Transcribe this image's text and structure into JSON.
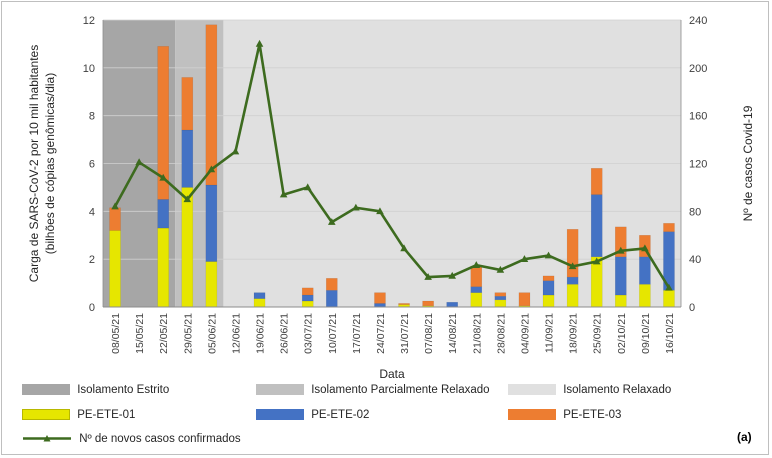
{
  "chart_data": {
    "type": "bar+line",
    "xlabel": "Data",
    "ylabel_left": "Carga de SARS-CoV-2 por 10 mil habitantes (bilhões de cópias genômicas/dia)",
    "ylabel_right": "Nº de casos Covid-19",
    "ylim_left": [
      0,
      12
    ],
    "ylim_right": [
      0,
      240
    ],
    "yticks_left": [
      "0",
      "2",
      "4",
      "6",
      "8",
      "10",
      "12"
    ],
    "yticks_right": [
      "0",
      "40",
      "80",
      "120",
      "160",
      "200",
      "240"
    ],
    "categories": [
      "08/05/21",
      "15/05/21",
      "22/05/21",
      "29/05/21",
      "05/06/21",
      "12/06/21",
      "19/06/21",
      "26/06/21",
      "03/07/21",
      "10/07/21",
      "17/07/21",
      "24/07/21",
      "31/07/21",
      "07/08/21",
      "14/08/21",
      "21/08/21",
      "28/08/21",
      "04/09/21",
      "11/09/21",
      "18/09/21",
      "25/09/21",
      "02/10/21",
      "09/10/21",
      "16/10/21"
    ],
    "series": [
      {
        "name": "PE-ETE-01",
        "type": "bar-stacked",
        "color": "#e6e600",
        "values": [
          3.2,
          0,
          3.3,
          5.0,
          1.9,
          0,
          0.35,
          0,
          0.25,
          0,
          0,
          0,
          0.1,
          0.05,
          0,
          0.6,
          0.3,
          0.05,
          0.5,
          0.95,
          2.1,
          0.5,
          0.95,
          0.7
        ]
      },
      {
        "name": "PE-ETE-02",
        "type": "bar-stacked",
        "color": "#4472c4",
        "values": [
          0,
          0,
          1.2,
          2.4,
          3.2,
          0,
          0.25,
          0,
          0.25,
          0.7,
          0,
          0.15,
          0,
          0,
          0.2,
          0.25,
          0.15,
          0,
          0.6,
          0.3,
          2.6,
          1.6,
          1.15,
          2.45
        ]
      },
      {
        "name": "PE-ETE-03",
        "type": "bar-stacked",
        "color": "#ed7d31",
        "values": [
          0.95,
          0,
          6.4,
          2.2,
          6.7,
          0,
          0,
          0,
          0.3,
          0.5,
          0,
          0.45,
          0.05,
          0.2,
          0,
          0.85,
          0.15,
          0.55,
          0.2,
          2.0,
          1.1,
          1.25,
          0.9,
          0.35
        ]
      },
      {
        "name": "Nº de novos casos confirmados",
        "type": "line",
        "axis": "right",
        "color": "#3d6b1f",
        "values": [
          84,
          121,
          108,
          90,
          115,
          130,
          220,
          94,
          100,
          71,
          83,
          80,
          49,
          25,
          26,
          35,
          31,
          40,
          43,
          34,
          38,
          47,
          49,
          16
        ]
      }
    ],
    "periods": [
      {
        "name": "Isolamento Estrito",
        "color": "#a6a6a6",
        "from": -0.5,
        "to": 2.5
      },
      {
        "name": "Isolamento Parcialmente Relaxado",
        "color": "#c0c0c0",
        "from": 2.5,
        "to": 4.5
      },
      {
        "name": "Isolamento Relaxado",
        "color": "#e0e0e0",
        "from": 4.5,
        "to": 23.5
      }
    ],
    "legend": [
      {
        "label": "Isolamento Estrito",
        "kind": "box",
        "color": "#a6a6a6"
      },
      {
        "label": "Isolamento Parcialmente Relaxado",
        "kind": "box",
        "color": "#c0c0c0"
      },
      {
        "label": "Isolamento Relaxado",
        "kind": "box",
        "color": "#e0e0e0"
      },
      {
        "label": "PE-ETE-01",
        "kind": "box",
        "color": "#e6e600"
      },
      {
        "label": "PE-ETE-02",
        "kind": "box",
        "color": "#4472c4"
      },
      {
        "label": "PE-ETE-03",
        "kind": "box",
        "color": "#ed7d31"
      },
      {
        "label": "Nº de novos casos confirmados",
        "kind": "line",
        "color": "#3d6b1f"
      }
    ],
    "panel_label": "(a)"
  }
}
